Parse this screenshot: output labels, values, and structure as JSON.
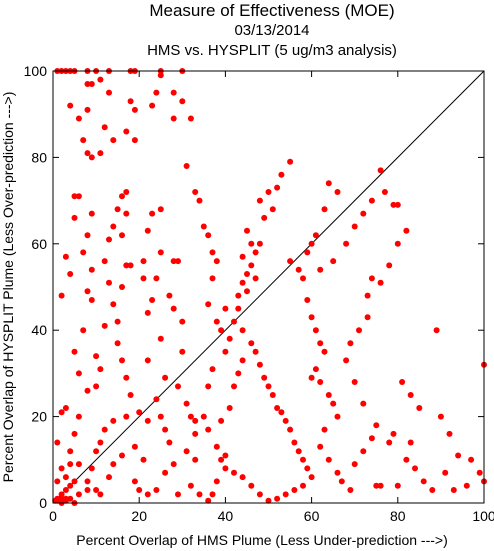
{
  "chart_data": {
    "type": "scatter",
    "title": "Measure of Effectiveness (MOE)",
    "date": "03/13/2014",
    "subtitle": "HMS vs. HYSPLIT  (5 ug/m3 analysis)",
    "xlabel": "Percent Overlap of HMS Plume (Less Under-prediction --->)",
    "ylabel": "Percent Overlap of HYSPLIT Plume (Less Over-prediction --->)",
    "xlim": [
      0,
      100
    ],
    "ylim": [
      0,
      100
    ],
    "xticks": [
      0,
      20,
      40,
      60,
      80,
      100
    ],
    "yticks": [
      0,
      20,
      40,
      60,
      80,
      100
    ],
    "grid": false,
    "reference_line": "y = x",
    "point_color": "#ff0000",
    "line_color": "#000000",
    "series": [
      {
        "values": [
          [
            1,
            100
          ],
          [
            2,
            100
          ],
          [
            3,
            100
          ],
          [
            4,
            100
          ],
          [
            5,
            100
          ],
          [
            8,
            100
          ],
          [
            10,
            100
          ],
          [
            13,
            100
          ],
          [
            18,
            100
          ],
          [
            19,
            100
          ],
          [
            25,
            100
          ],
          [
            30,
            100
          ],
          [
            1,
            1
          ],
          [
            2,
            2
          ],
          [
            3,
            3
          ],
          [
            4,
            4
          ],
          [
            5,
            5
          ],
          [
            1,
            0.5
          ],
          [
            2,
            1
          ],
          [
            3,
            1
          ],
          [
            0.5,
            0.5
          ],
          [
            2,
            0
          ],
          [
            3,
            0.5
          ],
          [
            4,
            1
          ],
          [
            6,
            2
          ],
          [
            5,
            0
          ],
          [
            1,
            5
          ],
          [
            2,
            8
          ],
          [
            3,
            6
          ],
          [
            4,
            12
          ],
          [
            1,
            14
          ],
          [
            2,
            21
          ],
          [
            3,
            22
          ],
          [
            6,
            20
          ],
          [
            5,
            16
          ],
          [
            4,
            9
          ],
          [
            6,
            9
          ],
          [
            8,
            3
          ],
          [
            4,
            92
          ],
          [
            6,
            89
          ],
          [
            8,
            91
          ],
          [
            7,
            84
          ],
          [
            8,
            81
          ],
          [
            9,
            80
          ],
          [
            11,
            81
          ],
          [
            12,
            87
          ],
          [
            13,
            95
          ],
          [
            11,
            98
          ],
          [
            9,
            97
          ],
          [
            8,
            97
          ],
          [
            14,
            84
          ],
          [
            5,
            71
          ],
          [
            6,
            71
          ],
          [
            8,
            62
          ],
          [
            9,
            67
          ],
          [
            5,
            66
          ],
          [
            7,
            58
          ],
          [
            9,
            54
          ],
          [
            8,
            49
          ],
          [
            9,
            47
          ],
          [
            7,
            40
          ],
          [
            5,
            35
          ],
          [
            6,
            30
          ],
          [
            2,
            48
          ],
          [
            3,
            57
          ],
          [
            4,
            53
          ],
          [
            10,
            27
          ],
          [
            8,
            26
          ],
          [
            10,
            34
          ],
          [
            11,
            31
          ],
          [
            12,
            41
          ],
          [
            13,
            51
          ],
          [
            12,
            56
          ],
          [
            13,
            61
          ],
          [
            14,
            64
          ],
          [
            15,
            68
          ],
          [
            16,
            71
          ],
          [
            17,
            72
          ],
          [
            17,
            67
          ],
          [
            16,
            62
          ],
          [
            17,
            55
          ],
          [
            18,
            55
          ],
          [
            16,
            50
          ],
          [
            14,
            46
          ],
          [
            15,
            42
          ],
          [
            15,
            37
          ],
          [
            16,
            33
          ],
          [
            17,
            29
          ],
          [
            18,
            25
          ],
          [
            17,
            20
          ],
          [
            14,
            19
          ],
          [
            12,
            17
          ],
          [
            11,
            14
          ],
          [
            10,
            12
          ],
          [
            9,
            8
          ],
          [
            8,
            5
          ],
          [
            10,
            3
          ],
          [
            11,
            2
          ],
          [
            13,
            6
          ],
          [
            14,
            9
          ],
          [
            16,
            11
          ],
          [
            19,
            13
          ],
          [
            19,
            5
          ],
          [
            20,
            3
          ],
          [
            21,
            10
          ],
          [
            22,
            19
          ],
          [
            20,
            21
          ],
          [
            22,
            33
          ],
          [
            22,
            44
          ],
          [
            21,
            52
          ],
          [
            21,
            56
          ],
          [
            22,
            63
          ],
          [
            23,
            67
          ],
          [
            25,
            68
          ],
          [
            25,
            58
          ],
          [
            24,
            52
          ],
          [
            23,
            47
          ],
          [
            25,
            38
          ],
          [
            26,
            29
          ],
          [
            24,
            24
          ],
          [
            25,
            20
          ],
          [
            26,
            17
          ],
          [
            27,
            14
          ],
          [
            28,
            9
          ],
          [
            26,
            7
          ],
          [
            24,
            3
          ],
          [
            22,
            2
          ],
          [
            19,
            91
          ],
          [
            18,
            93
          ],
          [
            17,
            86
          ],
          [
            19,
            84
          ],
          [
            23,
            92
          ],
          [
            24,
            95
          ],
          [
            25,
            99
          ],
          [
            28,
            95
          ],
          [
            30,
            93
          ],
          [
            32,
            89
          ],
          [
            28,
            89
          ],
          [
            29,
            56
          ],
          [
            28,
            56
          ],
          [
            27,
            48
          ],
          [
            28,
            45
          ],
          [
            30,
            42
          ],
          [
            30,
            35
          ],
          [
            29,
            27
          ],
          [
            31,
            23
          ],
          [
            32,
            20
          ],
          [
            33,
            16
          ],
          [
            31,
            12
          ],
          [
            33,
            10
          ],
          [
            32,
            4
          ],
          [
            34,
            2
          ],
          [
            29,
            2
          ],
          [
            31,
            78
          ],
          [
            33,
            72
          ],
          [
            34,
            70
          ],
          [
            35,
            64
          ],
          [
            36,
            62
          ],
          [
            37,
            58
          ],
          [
            38,
            56
          ],
          [
            37,
            52
          ],
          [
            36,
            46
          ],
          [
            38,
            42
          ],
          [
            39,
            40
          ],
          [
            37,
            31
          ],
          [
            36,
            27
          ],
          [
            35,
            20
          ],
          [
            33,
            19
          ],
          [
            36,
            17
          ],
          [
            38,
            13
          ],
          [
            39,
            10
          ],
          [
            40,
            8
          ],
          [
            38,
            5
          ],
          [
            37,
            2
          ],
          [
            36,
            0.5
          ],
          [
            39,
            19
          ],
          [
            41,
            22
          ],
          [
            42,
            27
          ],
          [
            43,
            30
          ],
          [
            44,
            33
          ],
          [
            40,
            35
          ],
          [
            41,
            38
          ],
          [
            42,
            42
          ],
          [
            40,
            45
          ],
          [
            43,
            48
          ],
          [
            45,
            49
          ],
          [
            47,
            52
          ],
          [
            44,
            57
          ],
          [
            46,
            60
          ],
          [
            45,
            63
          ],
          [
            48,
            70
          ],
          [
            50,
            72
          ],
          [
            53,
            76
          ],
          [
            55,
            79
          ],
          [
            52,
            73
          ],
          [
            51,
            68
          ],
          [
            49,
            66
          ],
          [
            48,
            60
          ],
          [
            47,
            58
          ],
          [
            46,
            55
          ],
          [
            45,
            53
          ],
          [
            44,
            51
          ],
          [
            43,
            45
          ],
          [
            44,
            40
          ],
          [
            46,
            37
          ],
          [
            47,
            35
          ],
          [
            48,
            32
          ],
          [
            49,
            29
          ],
          [
            50,
            27
          ],
          [
            51,
            25
          ],
          [
            52,
            22
          ],
          [
            53,
            21
          ],
          [
            54,
            19
          ],
          [
            55,
            17
          ],
          [
            56,
            14
          ],
          [
            57,
            12
          ],
          [
            58,
            10
          ],
          [
            59,
            8
          ],
          [
            60,
            6
          ],
          [
            58,
            4
          ],
          [
            56,
            3
          ],
          [
            54,
            2
          ],
          [
            52,
            1
          ],
          [
            50,
            0.5
          ],
          [
            48,
            2
          ],
          [
            46,
            4
          ],
          [
            44,
            6
          ],
          [
            42,
            7
          ],
          [
            40,
            11
          ],
          [
            55,
            56
          ],
          [
            57,
            54
          ],
          [
            59,
            47
          ],
          [
            60,
            43
          ],
          [
            61,
            40
          ],
          [
            62,
            37
          ],
          [
            63,
            35
          ],
          [
            61,
            31
          ],
          [
            60,
            29
          ],
          [
            62,
            28
          ],
          [
            64,
            25
          ],
          [
            65,
            23
          ],
          [
            66,
            20
          ],
          [
            63,
            17
          ],
          [
            62,
            13
          ],
          [
            64,
            10
          ],
          [
            66,
            7
          ],
          [
            67,
            5
          ],
          [
            69,
            3
          ],
          [
            70,
            9
          ],
          [
            72,
            12
          ],
          [
            74,
            15
          ],
          [
            75,
            18
          ],
          [
            72,
            23
          ],
          [
            70,
            28
          ],
          [
            68,
            33
          ],
          [
            69,
            37
          ],
          [
            71,
            40
          ],
          [
            73,
            43
          ],
          [
            73,
            48
          ],
          [
            74,
            52
          ],
          [
            76,
            51
          ],
          [
            78,
            55
          ],
          [
            80,
            60
          ],
          [
            82,
            63
          ],
          [
            79,
            69
          ],
          [
            77,
            72
          ],
          [
            64,
            74
          ],
          [
            66,
            72
          ],
          [
            63,
            68
          ],
          [
            61,
            62
          ],
          [
            60,
            60
          ],
          [
            59,
            58
          ],
          [
            58,
            52
          ],
          [
            62,
            54
          ],
          [
            65,
            56
          ],
          [
            68,
            60
          ],
          [
            70,
            64
          ],
          [
            72,
            67
          ],
          [
            74,
            70
          ],
          [
            76,
            77
          ],
          [
            80,
            69
          ],
          [
            81,
            28
          ],
          [
            83,
            25
          ],
          [
            85,
            22
          ],
          [
            83,
            14
          ],
          [
            82,
            10
          ],
          [
            84,
            8
          ],
          [
            86,
            5
          ],
          [
            88,
            3
          ],
          [
            89,
            40
          ],
          [
            90,
            20
          ],
          [
            92,
            16
          ],
          [
            94,
            11
          ],
          [
            97,
            10
          ],
          [
            99,
            7
          ],
          [
            100,
            5
          ],
          [
            100,
            32
          ],
          [
            96,
            4
          ],
          [
            93,
            3
          ],
          [
            91,
            7
          ],
          [
            78,
            14
          ],
          [
            75,
            4
          ],
          [
            76,
            4
          ],
          [
            80,
            4
          ],
          [
            79,
            16
          ]
        ]
      }
    ]
  }
}
